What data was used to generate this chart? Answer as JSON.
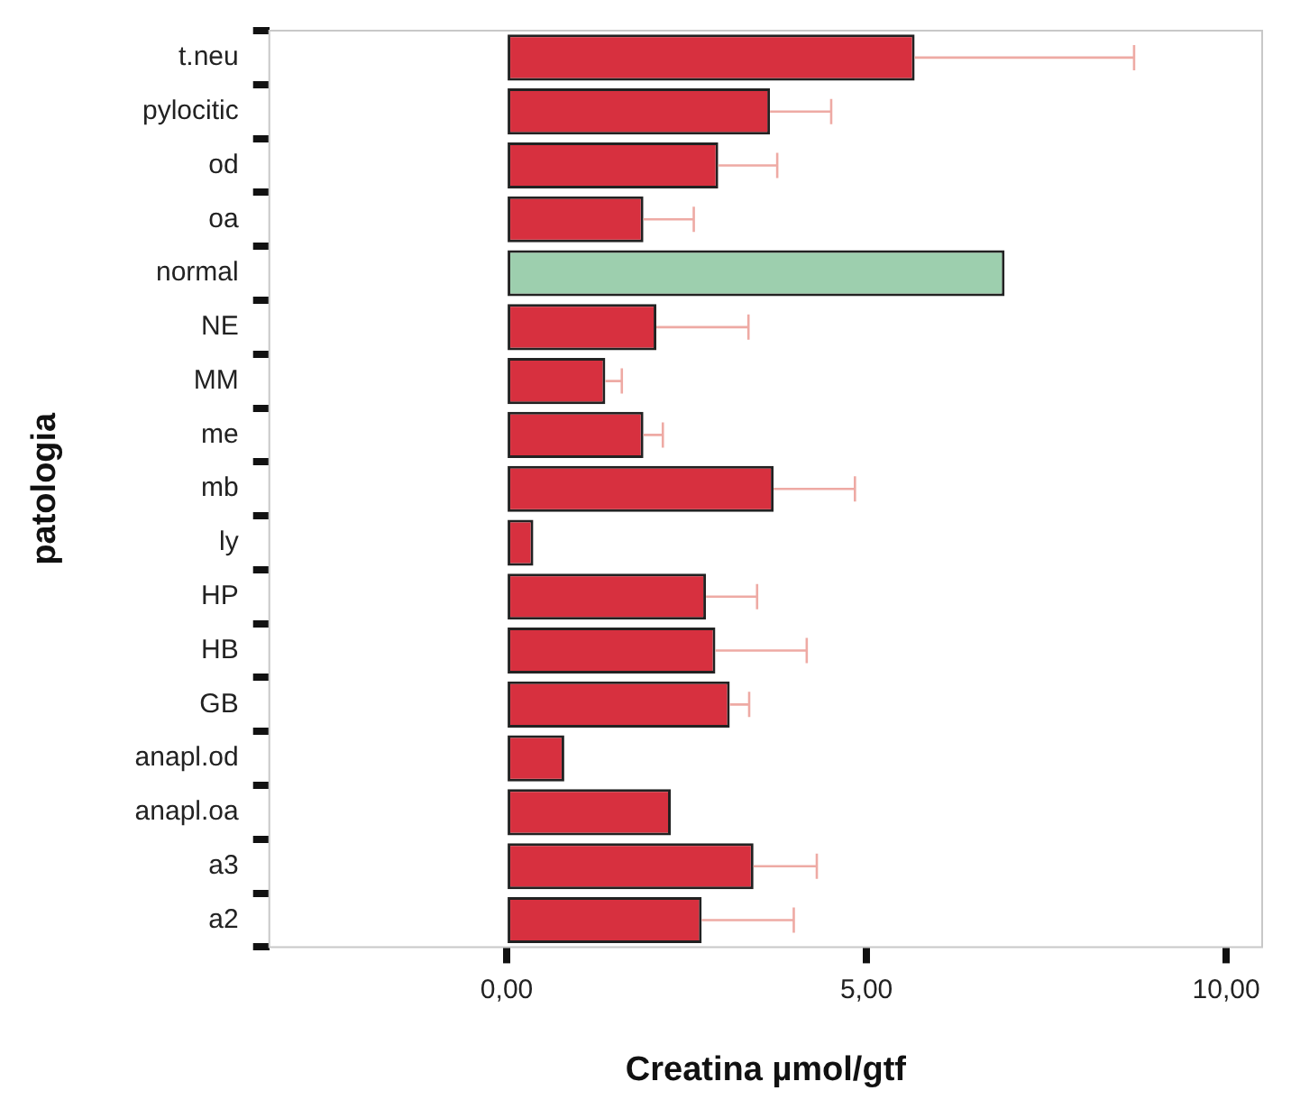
{
  "chart_data": {
    "type": "bar",
    "orientation": "horizontal",
    "categories": [
      "t.neu",
      "pylocitic",
      "od",
      "oa",
      "normal",
      "NE",
      "MM",
      "me",
      "mb",
      "ly",
      "HP",
      "HB",
      "GB",
      "anapl.od",
      "anapl.oa",
      "a3",
      "a2"
    ],
    "values": [
      5.67,
      3.66,
      2.94,
      1.9,
      6.92,
      2.08,
      1.37,
      1.9,
      3.71,
      0.37,
      2.77,
      2.9,
      3.1,
      0.8,
      2.28,
      3.43,
      2.71
    ],
    "errors": [
      [
        5.67,
        8.72
      ],
      [
        3.66,
        4.51
      ],
      [
        2.94,
        3.76
      ],
      [
        1.9,
        2.6
      ],
      null,
      [
        2.08,
        3.36
      ],
      [
        1.37,
        1.6
      ],
      [
        1.9,
        2.17
      ],
      [
        3.71,
        4.84
      ],
      null,
      [
        2.77,
        3.48
      ],
      [
        2.9,
        4.17
      ],
      [
        3.1,
        3.37
      ],
      null,
      null,
      [
        3.43,
        4.31
      ],
      [
        2.71,
        3.99
      ]
    ],
    "colors": [
      "#d7303f",
      "#d7303f",
      "#d7303f",
      "#d7303f",
      "#9dcfae",
      "#d7303f",
      "#d7303f",
      "#d7303f",
      "#d7303f",
      "#d7303f",
      "#d7303f",
      "#d7303f",
      "#d7303f",
      "#d7303f",
      "#d7303f",
      "#d7303f",
      "#d7303f"
    ],
    "xlim": [
      -3.3,
      10.5
    ],
    "xticks": [
      {
        "value": 0,
        "label": "0,00"
      },
      {
        "value": 5,
        "label": "5,00"
      },
      {
        "value": 10,
        "label": "10,00"
      }
    ],
    "xlabel": "Creatina µmol/gtf",
    "ylabel": "patologia",
    "grid": false,
    "legend": false
  }
}
